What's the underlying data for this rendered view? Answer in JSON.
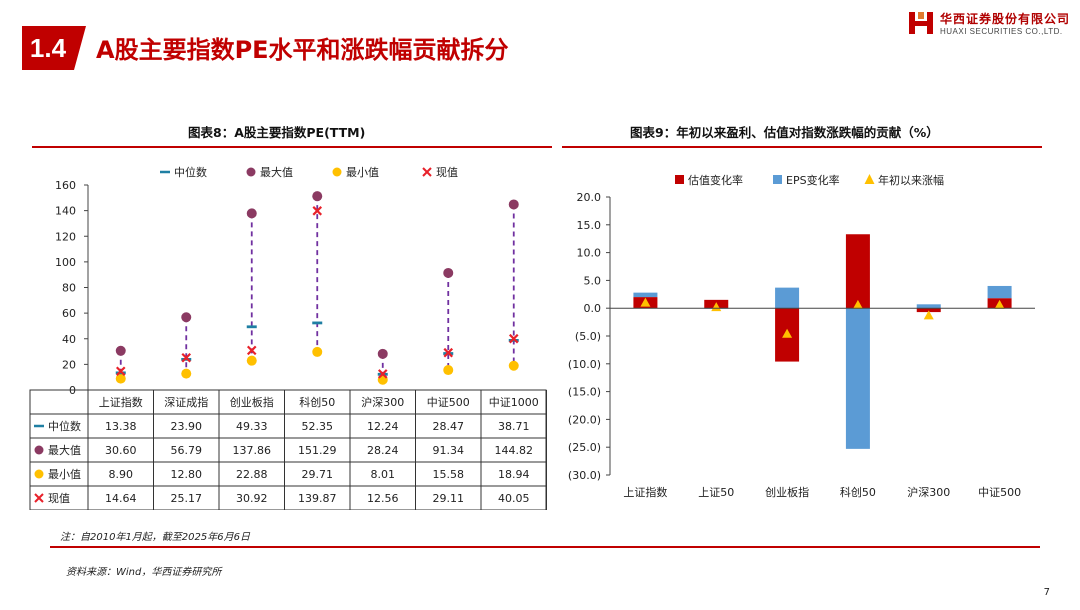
{
  "header": {
    "section_number": "1.4",
    "title": "A股主要指数PE水平和涨跌幅贡献拆分",
    "logo_cn": "华西证券股份有限公司",
    "logo_en": "HUAXI SECURITIES CO.,LTD."
  },
  "colors": {
    "accent": "#c00000",
    "median": "#1f7fa3",
    "max": "#8b3a62",
    "min": "#ffc000",
    "current": "#e8212a",
    "eps": "#5b9bd5",
    "ytd": "#ffc000",
    "dash": "#7030a0"
  },
  "chart_data": [
    {
      "id": "chart8",
      "type": "scatter",
      "title": "图表8：A股主要指数PE(TTM)",
      "categories": [
        "上证指数",
        "深证成指",
        "创业板指",
        "科创50",
        "沪深300",
        "中证500",
        "中证1000"
      ],
      "ylim": [
        0,
        160
      ],
      "yticks": [
        "0",
        "20",
        "40",
        "60",
        "80",
        "100",
        "120",
        "140",
        "160"
      ],
      "legend_position": "top",
      "series": [
        {
          "name": "中位数",
          "marker": "dash",
          "values": [
            13.38,
            23.9,
            49.33,
            52.35,
            12.24,
            28.47,
            38.71
          ],
          "labels": [
            "13.38",
            "23.90",
            "49.33",
            "52.35",
            "12.24",
            "28.47",
            "38.71"
          ]
        },
        {
          "name": "最大值",
          "marker": "circle",
          "values": [
            30.6,
            56.79,
            137.86,
            151.29,
            28.24,
            91.34,
            144.82
          ],
          "labels": [
            "30.60",
            "56.79",
            "137.86",
            "151.29",
            "28.24",
            "91.34",
            "144.82"
          ]
        },
        {
          "name": "最小值",
          "marker": "circle",
          "values": [
            8.9,
            12.8,
            22.88,
            29.71,
            8.01,
            15.58,
            18.94
          ],
          "labels": [
            "8.90",
            "12.80",
            "22.88",
            "29.71",
            "8.01",
            "15.58",
            "18.94"
          ]
        },
        {
          "name": "现值",
          "marker": "cross",
          "values": [
            14.64,
            25.17,
            30.92,
            139.87,
            12.56,
            29.11,
            40.05
          ],
          "labels": [
            "14.64",
            "25.17",
            "30.92",
            "139.87",
            "12.56",
            "29.11",
            "40.05"
          ]
        }
      ]
    },
    {
      "id": "chart9",
      "type": "bar",
      "title": "图表9：年初以来盈利、估值对指数涨跌幅的贡献（%）",
      "categories": [
        "上证指数",
        "上证50",
        "创业板指",
        "科创50",
        "沪深300",
        "中证500"
      ],
      "ylim": [
        -30,
        20
      ],
      "yticks": [
        "(30.0)",
        "(25.0)",
        "(20.0)",
        "(15.0)",
        "(10.0)",
        "(5.0)",
        "0.0",
        "5.0",
        "10.0",
        "15.0",
        "20.0"
      ],
      "legend_position": "top",
      "series": [
        {
          "name": "估值变化率",
          "values": [
            2.0,
            1.5,
            -9.6,
            13.3,
            -0.7,
            1.8
          ]
        },
        {
          "name": "EPS变化率",
          "values": [
            0.8,
            -0.1,
            3.7,
            -25.3,
            0.7,
            2.2
          ]
        },
        {
          "name": "年初以来涨幅",
          "values": [
            1.0,
            0.2,
            -4.6,
            0.6,
            -1.3,
            0.6
          ]
        }
      ]
    }
  ],
  "notes": {
    "note": "注：自2010年1月起，截至2025年6月6日",
    "source": "资料来源：Wind，华西证券研究所"
  },
  "page_number": "7"
}
